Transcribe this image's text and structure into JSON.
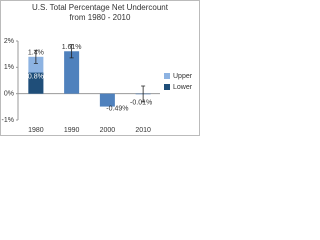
{
  "chart_data": {
    "type": "bar",
    "title": "U.S. Total Percentage Net Undercount",
    "subtitle": "from 1980 - 2010",
    "categories": [
      "1980",
      "1990",
      "2000",
      "2010"
    ],
    "series": [
      {
        "name": "Upper",
        "color": "#8db3e2",
        "values": [
          1.4,
          null,
          null,
          null
        ],
        "value_labels": [
          "1.4%",
          null,
          null,
          null
        ],
        "errors": [
          0.25,
          null,
          null,
          null
        ]
      },
      {
        "name": "Lower",
        "color": "#1f4e79",
        "colors": [
          "#1f4e79",
          "#4f81bd",
          "#4f81bd",
          "#4f81bd"
        ],
        "values": [
          0.8,
          1.61,
          -0.49,
          -0.01
        ],
        "value_labels": [
          "0.8%",
          "1.61%",
          "-0.49%",
          "-0.01%"
        ],
        "errors": [
          null,
          0.25,
          null,
          0.3
        ]
      }
    ],
    "ylim": [
      -1,
      2
    ],
    "yticks": [
      {
        "value": -1,
        "label": "-1%"
      },
      {
        "value": 0,
        "label": "0%"
      },
      {
        "value": 1,
        "label": "1%"
      },
      {
        "value": 2,
        "label": "2%"
      }
    ],
    "legend": "right"
  }
}
